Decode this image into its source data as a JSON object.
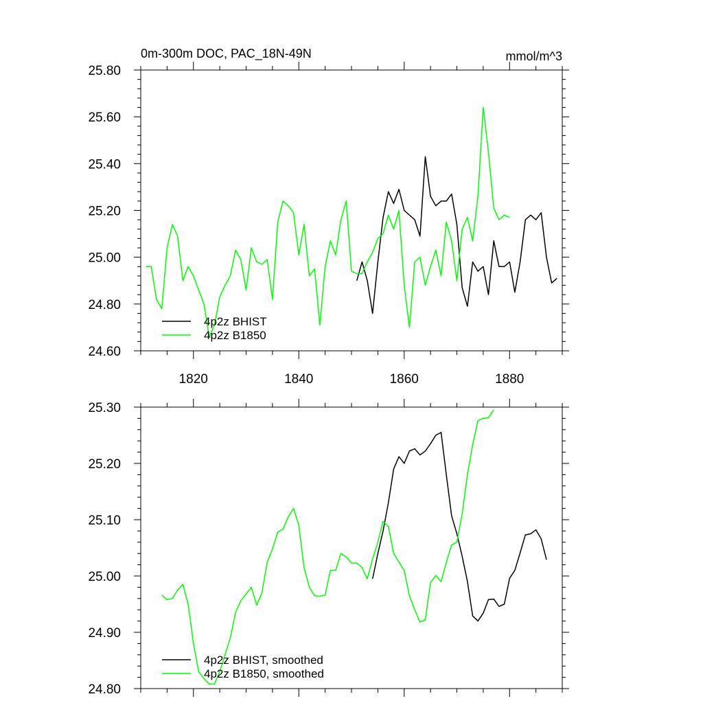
{
  "chart_data": [
    {
      "type": "line",
      "title": "0m-300m DOC, PAC_18N-49N",
      "units_label": "mmol/m^3",
      "xlim": [
        1810,
        1890
      ],
      "ylim": [
        24.6,
        25.8
      ],
      "x_ticks": [
        1820,
        1840,
        1860,
        1880
      ],
      "x_tick_labels": [
        "1820",
        "1840",
        "1860",
        "1880"
      ],
      "y_ticks": [
        24.6,
        24.8,
        25.0,
        25.2,
        25.4,
        25.6,
        25.8
      ],
      "y_tick_labels": [
        "24.60",
        "24.80",
        "25.00",
        "25.20",
        "25.40",
        "25.60",
        "25.80"
      ],
      "legend_position": "bottom-left",
      "series": [
        {
          "name": "4p2z BHIST",
          "color": "#000000",
          "x": [
            1851,
            1852,
            1853,
            1854,
            1855,
            1856,
            1857,
            1858,
            1859,
            1860,
            1861,
            1862,
            1863,
            1864,
            1865,
            1866,
            1867,
            1868,
            1869,
            1870,
            1871,
            1872,
            1873,
            1874,
            1875,
            1876,
            1877,
            1878,
            1879,
            1880,
            1881,
            1882,
            1883,
            1884,
            1885,
            1886,
            1887,
            1888,
            1889
          ],
          "y": [
            24.9,
            24.98,
            24.9,
            24.76,
            24.98,
            25.17,
            25.28,
            25.23,
            25.29,
            25.2,
            25.18,
            25.16,
            25.09,
            25.43,
            25.26,
            25.22,
            25.24,
            25.24,
            25.27,
            25.14,
            24.87,
            24.79,
            24.98,
            24.94,
            24.96,
            24.84,
            25.07,
            24.96,
            24.96,
            24.98,
            24.85,
            24.98,
            25.16,
            25.18,
            25.16,
            25.19,
            25.0,
            24.89,
            24.91
          ]
        },
        {
          "name": "4p2z B1850",
          "color": "#00ff00",
          "x": [
            1811,
            1812,
            1813,
            1814,
            1815,
            1816,
            1817,
            1818,
            1819,
            1820,
            1821,
            1822,
            1823,
            1824,
            1825,
            1826,
            1827,
            1828,
            1829,
            1830,
            1831,
            1832,
            1833,
            1834,
            1835,
            1836,
            1837,
            1838,
            1839,
            1840,
            1841,
            1842,
            1843,
            1844,
            1845,
            1846,
            1847,
            1848,
            1849,
            1850,
            1851,
            1852,
            1853,
            1854,
            1855,
            1856,
            1857,
            1858,
            1859,
            1860,
            1861,
            1862,
            1863,
            1864,
            1865,
            1866,
            1867,
            1868,
            1869,
            1870,
            1871,
            1872,
            1873,
            1874,
            1875,
            1876,
            1877,
            1878,
            1879,
            1880
          ],
          "y": [
            24.96,
            24.96,
            24.82,
            24.78,
            25.04,
            25.14,
            25.09,
            24.9,
            24.96,
            24.92,
            24.86,
            24.8,
            24.66,
            24.71,
            24.83,
            24.88,
            24.92,
            25.03,
            24.99,
            24.86,
            25.04,
            24.98,
            24.97,
            24.99,
            24.82,
            25.15,
            25.24,
            25.22,
            25.19,
            25.01,
            25.14,
            24.92,
            24.95,
            24.71,
            24.96,
            25.07,
            25.01,
            25.16,
            25.24,
            24.94,
            24.93,
            24.93,
            24.98,
            25.02,
            25.08,
            25.1,
            25.18,
            25.12,
            25.2,
            24.88,
            24.7,
            24.98,
            25.0,
            24.88,
            24.96,
            25.03,
            24.92,
            25.15,
            25.07,
            24.9,
            25.12,
            25.17,
            25.07,
            25.26,
            25.64,
            25.45,
            25.21,
            25.16,
            25.18,
            25.17
          ]
        }
      ]
    },
    {
      "type": "line",
      "xlim": [
        1810,
        1890
      ],
      "ylim": [
        24.8,
        25.3
      ],
      "x_ticks": [
        1820,
        1840,
        1860,
        1880
      ],
      "y_ticks": [
        24.8,
        24.9,
        25.0,
        25.1,
        25.2,
        25.3
      ],
      "y_tick_labels": [
        "24.80",
        "24.90",
        "25.00",
        "25.10",
        "25.20",
        "25.30"
      ],
      "legend_position": "bottom-left",
      "series": [
        {
          "name": "4p2z BHIST, smoothed",
          "color": "#000000",
          "x": [
            1854,
            1855,
            1856,
            1857,
            1858,
            1859,
            1860,
            1861,
            1862,
            1863,
            1864,
            1865,
            1866,
            1867,
            1868,
            1869,
            1870,
            1871,
            1872,
            1873,
            1874,
            1875,
            1876,
            1877,
            1878,
            1879,
            1880,
            1881,
            1882,
            1883,
            1884,
            1885,
            1886,
            1887
          ],
          "y": [
            24.995,
            25.04,
            25.08,
            25.13,
            25.19,
            25.212,
            25.2,
            25.222,
            25.226,
            25.215,
            25.222,
            25.235,
            25.25,
            25.255,
            25.18,
            25.107,
            25.075,
            25.035,
            24.99,
            24.929,
            24.92,
            24.934,
            24.958,
            24.959,
            24.946,
            24.95,
            24.996,
            25.01,
            25.041,
            25.073,
            25.075,
            25.082,
            25.066,
            25.029
          ]
        },
        {
          "name": "4p2z B1850, smoothed",
          "color": "#00ff00",
          "x": [
            1814,
            1815,
            1816,
            1817,
            1818,
            1819,
            1820,
            1821,
            1822,
            1823,
            1824,
            1825,
            1826,
            1827,
            1828,
            1829,
            1830,
            1831,
            1832,
            1833,
            1834,
            1835,
            1836,
            1837,
            1838,
            1839,
            1840,
            1841,
            1842,
            1843,
            1844,
            1845,
            1846,
            1847,
            1848,
            1849,
            1850,
            1851,
            1852,
            1853,
            1854,
            1855,
            1856,
            1857,
            1858,
            1859,
            1860,
            1861,
            1862,
            1863,
            1864,
            1865,
            1866,
            1867,
            1868,
            1869,
            1870,
            1871,
            1872,
            1873,
            1874,
            1875,
            1876,
            1877
          ],
          "y": [
            24.966,
            24.958,
            24.96,
            24.975,
            24.985,
            24.95,
            24.88,
            24.83,
            24.818,
            24.808,
            24.808,
            24.83,
            24.86,
            24.89,
            24.935,
            24.956,
            24.968,
            24.98,
            24.948,
            24.97,
            25.024,
            25.048,
            25.078,
            25.083,
            25.105,
            25.12,
            25.09,
            25.015,
            24.98,
            24.965,
            24.964,
            24.966,
            25.01,
            25.01,
            25.04,
            25.034,
            25.023,
            25.023,
            25.015,
            24.995,
            25.03,
            25.06,
            25.097,
            25.088,
            25.04,
            25.025,
            25.01,
            24.965,
            24.94,
            24.918,
            24.922,
            24.988,
            25.001,
            24.99,
            25.024,
            25.055,
            25.06,
            25.11,
            25.18,
            25.233,
            25.276,
            25.28,
            25.281,
            25.295
          ]
        }
      ]
    }
  ]
}
